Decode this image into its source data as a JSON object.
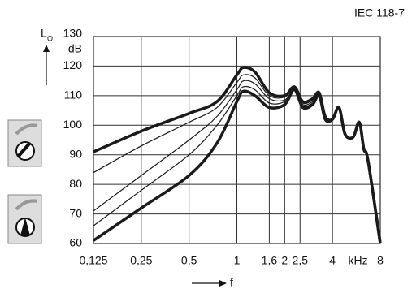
{
  "chart_data": {
    "type": "line",
    "standard": "IEC 118-7",
    "y_label": "L",
    "y_label_sub": "O",
    "y_unit": "dB",
    "x_label": "f",
    "x_unit": "kHz",
    "log_x": true,
    "grid": true,
    "xlim": [
      0.125,
      8
    ],
    "xticks": [
      {
        "value": 0.125,
        "label": "0,125"
      },
      {
        "value": 0.25,
        "label": "0,25"
      },
      {
        "value": 0.5,
        "label": "0,5"
      },
      1,
      {
        "value": 1.6,
        "label": "1,6"
      },
      2,
      {
        "value": 2.5,
        "label": "2,5"
      },
      4,
      8
    ],
    "ylim": [
      60,
      130
    ],
    "yticks": [
      60,
      70,
      80,
      90,
      100,
      110,
      120,
      130
    ],
    "x": [
      0.125,
      0.25,
      0.5,
      0.75,
      1,
      1.1,
      1.3,
      1.6,
      2,
      2.3,
      2.6,
      3,
      3.3,
      3.6,
      4,
      4.4,
      4.8,
      5.4,
      5.9,
      6.3,
      6.7,
      8
    ],
    "series": [
      {
        "color": "#1a1a1a",
        "line_width": 3.5,
        "values": [
          91,
          98,
          104,
          108,
          117,
          119.5,
          118,
          111,
          110,
          113,
          108,
          109,
          111,
          103,
          102,
          106,
          97,
          96,
          101,
          92,
          88,
          60
        ]
      },
      {
        "color": "#1a1a1a",
        "line_width": 1.2,
        "values": [
          84,
          93,
          101,
          106,
          114.5,
          117,
          116,
          110,
          109.5,
          112.5,
          107.5,
          108.5,
          110.5,
          103,
          102,
          106,
          97,
          96,
          101,
          92,
          88,
          60
        ]
      },
      {
        "color": "#1a1a1a",
        "line_width": 1.2,
        "values": [
          71,
          83,
          95,
          103,
          112,
          115,
          114,
          109,
          108.5,
          112,
          107,
          108,
          110.5,
          102.5,
          102,
          106,
          97,
          96,
          101,
          92,
          88,
          60
        ]
      },
      {
        "color": "#1a1a1a",
        "line_width": 1.2,
        "values": [
          66,
          78,
          90,
          100,
          110,
          113,
          112,
          107.5,
          108,
          112,
          106.5,
          107.5,
          110,
          102,
          102,
          106,
          97,
          96,
          101,
          92,
          88,
          60
        ]
      },
      {
        "color": "#1a1a1a",
        "line_width": 3.5,
        "values": [
          61,
          72,
          83,
          94,
          108,
          111.5,
          110,
          106,
          107,
          112,
          106,
          107,
          110,
          102,
          102,
          106,
          97,
          96,
          101,
          92,
          88,
          60
        ]
      }
    ]
  }
}
